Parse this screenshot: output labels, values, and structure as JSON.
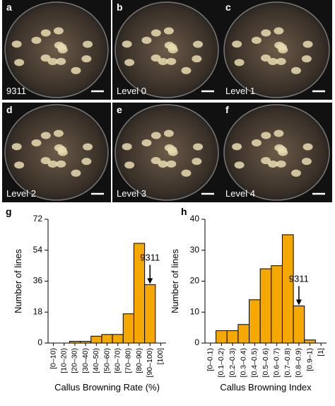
{
  "panels": [
    {
      "letter": "a",
      "label": "9311"
    },
    {
      "letter": "b",
      "label": "Level 0"
    },
    {
      "letter": "c",
      "label": "Level 1"
    },
    {
      "letter": "d",
      "label": "Level 2"
    },
    {
      "letter": "e",
      "label": "Level 3"
    },
    {
      "letter": "f",
      "label": "Level 4"
    }
  ],
  "chart_data": [
    {
      "type": "bar",
      "panel_letter": "g",
      "x_label": "Callus Browning Rate (%)",
      "y_label": "Number of lines",
      "categories": [
        "[0–10)",
        "[10–20)",
        "[20–30)",
        "[30–40)",
        "[40–50)",
        "[50–60)",
        "[60–70)",
        "[70–80)",
        "[80–90)",
        "[90–100)",
        "[100]"
      ],
      "values": [
        0,
        0,
        1,
        1,
        4,
        5,
        5,
        17,
        58,
        34,
        0
      ],
      "color": "#f5a800",
      "ylim": [
        0,
        72
      ],
      "yticks": [
        0,
        18,
        36,
        54,
        72
      ],
      "annotation": "9311",
      "annotation_category": "[90–100)"
    },
    {
      "type": "bar",
      "panel_letter": "h",
      "x_label": "Callus Browning Index",
      "y_label": "Number of lines",
      "categories": [
        "[0–0.1)",
        "[0.1–0.2)",
        "[0.2–0.3)",
        "[0.3–0.4)",
        "[0.4–0.5)",
        "[0.5–0.6)",
        "[0.6–0.7)",
        "[0.7–0.8)",
        "[0.8–0.9)",
        "[0.9–1)",
        "[1]"
      ],
      "values": [
        0,
        4,
        4,
        6,
        14,
        24,
        25,
        35,
        12,
        1,
        0
      ],
      "color": "#f5a800",
      "ylim": [
        0,
        40
      ],
      "yticks": [
        0,
        10,
        20,
        30,
        40
      ],
      "annotation": "9311",
      "annotation_category": "[0.8–0.9)"
    }
  ]
}
